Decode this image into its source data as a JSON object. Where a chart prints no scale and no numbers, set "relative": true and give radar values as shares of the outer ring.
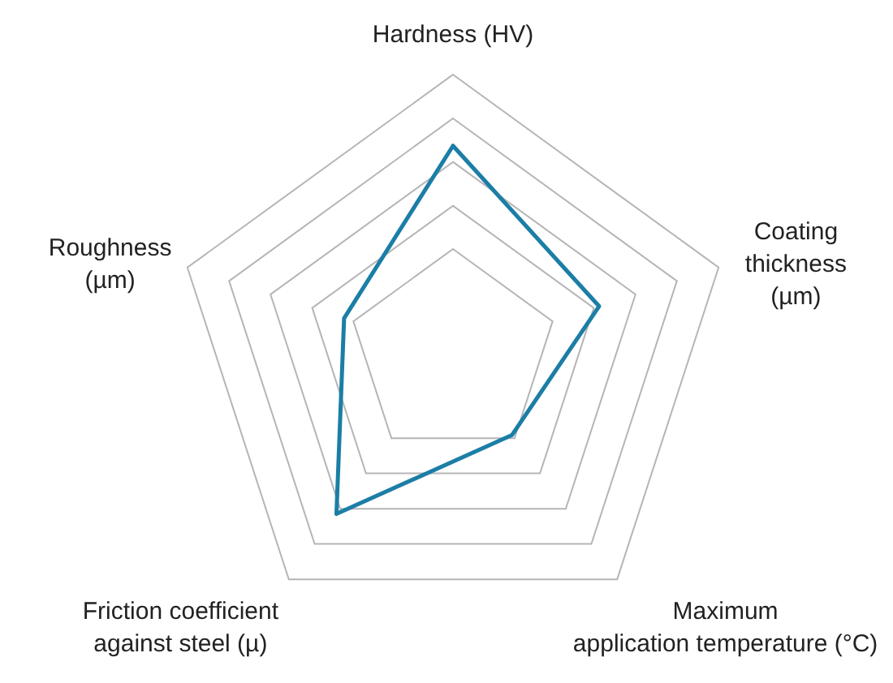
{
  "chart_data": {
    "type": "radar",
    "relative": true,
    "categories": [
      "Hardness (HV)",
      "Coating\nthickness\n(µm)",
      "Maximum\napplication temperature (°C)",
      "Friction coefficient\nagainst steel (µ)",
      "Roughness\n(µm)"
    ],
    "series": [
      {
        "color": "#1b7ea6",
        "values": [
          0.745,
          0.55,
          0.36,
          0.71,
          0.41
        ]
      }
    ],
    "marker": "none"
  }
}
